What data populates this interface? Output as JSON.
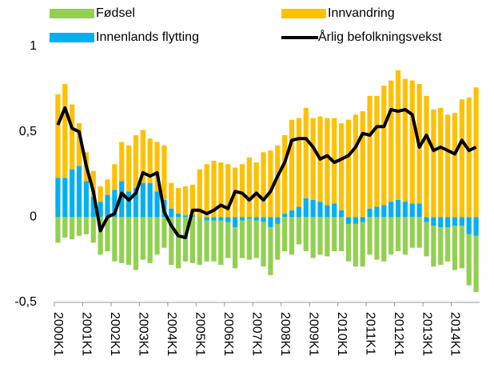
{
  "chart_data": {
    "type": "bar",
    "categories": [
      "2000K1",
      null,
      null,
      null,
      "2001K1",
      null,
      null,
      null,
      "2002K1",
      null,
      null,
      null,
      "2003K1",
      null,
      null,
      null,
      "2004K1",
      null,
      null,
      null,
      "2005K1",
      null,
      null,
      null,
      "2006K1",
      null,
      null,
      null,
      "2007K1",
      null,
      null,
      null,
      "2008K1",
      null,
      null,
      null,
      "2009K1",
      null,
      null,
      null,
      "2010K1",
      null,
      null,
      null,
      "2011K1",
      null,
      null,
      null,
      "2012K1",
      null,
      null,
      null,
      "2013K1",
      null,
      null,
      null,
      "2014K1",
      null,
      null,
      null
    ],
    "series": [
      {
        "name": "Innenlands flytting",
        "color": "#00b0f0",
        "values": [
          0.23,
          0.23,
          0.28,
          0.3,
          0.21,
          0.12,
          0.09,
          0.13,
          0.16,
          0.21,
          0.15,
          0.17,
          0.2,
          0.2,
          0.15,
          0.1,
          0.05,
          0.02,
          0.01,
          0.01,
          0,
          -0.02,
          -0.02,
          -0.02,
          -0.03,
          -0.06,
          -0.02,
          -0.01,
          -0.02,
          -0.03,
          -0.06,
          -0.04,
          0.02,
          0.04,
          0.06,
          0.11,
          0.1,
          0.09,
          0.07,
          0.08,
          0.04,
          -0.04,
          -0.04,
          -0.03,
          0.05,
          0.06,
          0.07,
          0.09,
          0.1,
          0.09,
          0.08,
          0.08,
          -0.03,
          -0.05,
          -0.06,
          -0.06,
          -0.05,
          -0.05,
          -0.1,
          -0.11
        ]
      },
      {
        "name": "Innvandring",
        "color": "#ffc000",
        "values": [
          0.49,
          0.55,
          0.38,
          0.25,
          0.17,
          0.15,
          0.09,
          0.09,
          0.15,
          0.23,
          0.27,
          0.31,
          0.31,
          0.26,
          0.29,
          0.32,
          0.15,
          0.15,
          0.17,
          0.18,
          0.28,
          0.31,
          0.33,
          0.32,
          0.31,
          0.29,
          0.31,
          0.35,
          0.32,
          0.38,
          0.39,
          0.42,
          0.46,
          0.53,
          0.52,
          0.53,
          0.48,
          0.5,
          0.51,
          0.5,
          0.51,
          0.57,
          0.6,
          0.62,
          0.66,
          0.65,
          0.7,
          0.71,
          0.76,
          0.72,
          0.72,
          0.7,
          0.71,
          0.63,
          0.64,
          0.6,
          0.61,
          0.69,
          0.7,
          0.76
        ]
      },
      {
        "name": "Fødsel",
        "color": "#92d050",
        "values": [
          -0.15,
          -0.12,
          -0.13,
          -0.11,
          -0.1,
          -0.15,
          -0.22,
          -0.2,
          -0.26,
          -0.27,
          -0.28,
          -0.31,
          -0.25,
          -0.27,
          -0.22,
          -0.18,
          -0.28,
          -0.3,
          -0.26,
          -0.27,
          -0.28,
          -0.24,
          -0.24,
          -0.26,
          -0.21,
          -0.24,
          -0.22,
          -0.24,
          -0.22,
          -0.26,
          -0.28,
          -0.21,
          -0.2,
          -0.22,
          -0.16,
          -0.2,
          -0.24,
          -0.22,
          -0.23,
          -0.2,
          -0.2,
          -0.22,
          -0.25,
          -0.26,
          -0.22,
          -0.25,
          -0.26,
          -0.22,
          -0.2,
          -0.22,
          -0.18,
          -0.18,
          -0.2,
          -0.24,
          -0.22,
          -0.2,
          -0.26,
          -0.25,
          -0.3,
          -0.33
        ]
      }
    ],
    "line": {
      "name": "Årlig befolkningsvekst",
      "color": "#000000",
      "values": [
        0.54,
        0.64,
        0.52,
        0.5,
        0.3,
        0.15,
        -0.08,
        0.0,
        0.02,
        0.14,
        0.1,
        0.14,
        0.26,
        0.24,
        0.26,
        0.03,
        -0.05,
        -0.11,
        -0.12,
        0.04,
        0.04,
        0.02,
        0.04,
        0.07,
        0.05,
        0.15,
        0.14,
        0.1,
        0.14,
        0.1,
        0.15,
        0.24,
        0.32,
        0.45,
        0.46,
        0.46,
        0.41,
        0.34,
        0.36,
        0.32,
        0.34,
        0.36,
        0.41,
        0.49,
        0.48,
        0.53,
        0.53,
        0.63,
        0.62,
        0.63,
        0.6,
        0.41,
        0.48,
        0.39,
        0.41,
        0.39,
        0.37,
        0.45,
        0.39,
        0.41
      ]
    },
    "ylim": [
      -0.5,
      1
    ],
    "yticks": [
      {
        "value": -0.5,
        "label": "-0,5"
      },
      0,
      {
        "value": 0.5,
        "label": "0,5"
      },
      1
    ]
  }
}
